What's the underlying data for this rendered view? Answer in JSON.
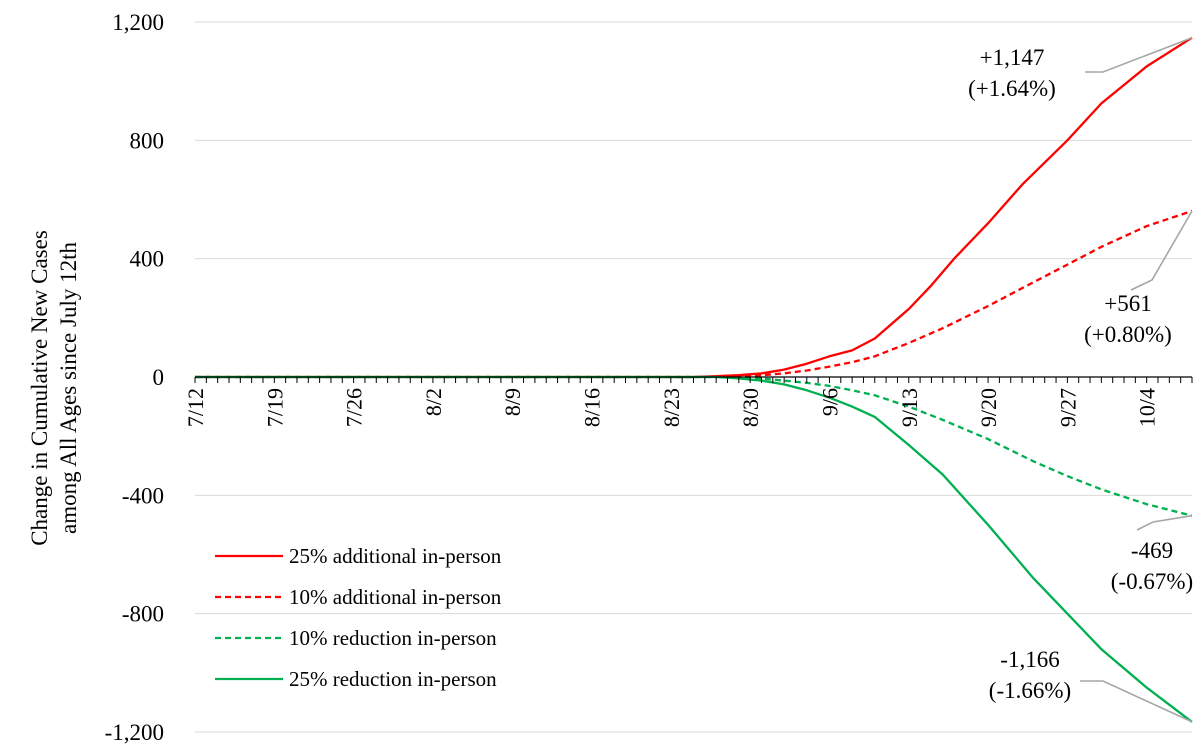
{
  "chart_data": {
    "type": "line",
    "title": "",
    "ylabel": [
      "Change in Cumulative New Cases",
      "among All Ages since July 12th"
    ],
    "xlabel": "",
    "ylim": [
      -1200,
      1200
    ],
    "yticks": [
      1200,
      800,
      400,
      0,
      -400,
      -800,
      -1200
    ],
    "ytick_labels": [
      "1,200",
      "800",
      "400",
      "0",
      "-400",
      "-800",
      "-1,200"
    ],
    "x_range_days": [
      0,
      88
    ],
    "xticks": [
      {
        "label": "7/12",
        "day": 0
      },
      {
        "label": "7/19",
        "day": 7
      },
      {
        "label": "7/26",
        "day": 14
      },
      {
        "label": "8/2",
        "day": 21
      },
      {
        "label": "8/9",
        "day": 28
      },
      {
        "label": "8/16",
        "day": 35
      },
      {
        "label": "8/23",
        "day": 42
      },
      {
        "label": "8/30",
        "day": 49
      },
      {
        "label": "9/6",
        "day": 56
      },
      {
        "label": "9/13",
        "day": 63
      },
      {
        "label": "9/20",
        "day": 70
      },
      {
        "label": "9/27",
        "day": 77
      },
      {
        "label": "10/4",
        "day": 84
      }
    ],
    "grid": "horizontal",
    "legend_position": "bottom-left",
    "series": [
      {
        "name": "25% additional in-person",
        "color": "#ff0000",
        "dash": "solid",
        "x": [
          0,
          44,
          46,
          48,
          50,
          52,
          54,
          56,
          58,
          60,
          63,
          65,
          67,
          70,
          73,
          77,
          80,
          84,
          88
        ],
        "y": [
          0,
          0,
          3,
          6,
          12,
          25,
          45,
          70,
          90,
          130,
          230,
          310,
          400,
          520,
          650,
          800,
          925,
          1050,
          1147
        ]
      },
      {
        "name": "10% additional in-person",
        "color": "#ff0000",
        "dash": "dashed",
        "x": [
          0,
          44,
          48,
          50,
          52,
          54,
          56,
          58,
          60,
          63,
          66,
          70,
          74,
          77,
          80,
          84,
          88
        ],
        "y": [
          0,
          0,
          3,
          6,
          12,
          22,
          35,
          50,
          70,
          115,
          165,
          240,
          320,
          380,
          440,
          510,
          561
        ]
      },
      {
        "name": "10% reduction in-person",
        "color": "#00b050",
        "dash": "dashed",
        "x": [
          0,
          46,
          48,
          50,
          52,
          54,
          56,
          58,
          60,
          63,
          66,
          70,
          74,
          77,
          80,
          84,
          88
        ],
        "y": [
          0,
          0,
          -3,
          -5,
          -12,
          -20,
          -30,
          -45,
          -62,
          -100,
          -145,
          -210,
          -285,
          -335,
          -380,
          -430,
          -469
        ]
      },
      {
        "name": "25% reduction in-person",
        "color": "#00b050",
        "dash": "solid",
        "x": [
          0,
          46,
          48,
          50,
          52,
          54,
          56,
          58,
          60,
          63,
          66,
          70,
          74,
          77,
          80,
          84,
          88
        ],
        "y": [
          0,
          0,
          -5,
          -12,
          -25,
          -45,
          -70,
          -100,
          -135,
          -230,
          -330,
          -500,
          -680,
          -800,
          -920,
          -1050,
          -1166
        ]
      }
    ],
    "annotations": [
      {
        "lines": [
          "+1,147",
          "(+1.64%)"
        ],
        "series": 0
      },
      {
        "lines": [
          "+561",
          "(+0.80%)"
        ],
        "series": 1
      },
      {
        "lines": [
          "-469",
          "(-0.67%)"
        ],
        "series": 2
      },
      {
        "lines": [
          "-1,166",
          "(-1.66%)"
        ],
        "series": 3
      }
    ]
  }
}
